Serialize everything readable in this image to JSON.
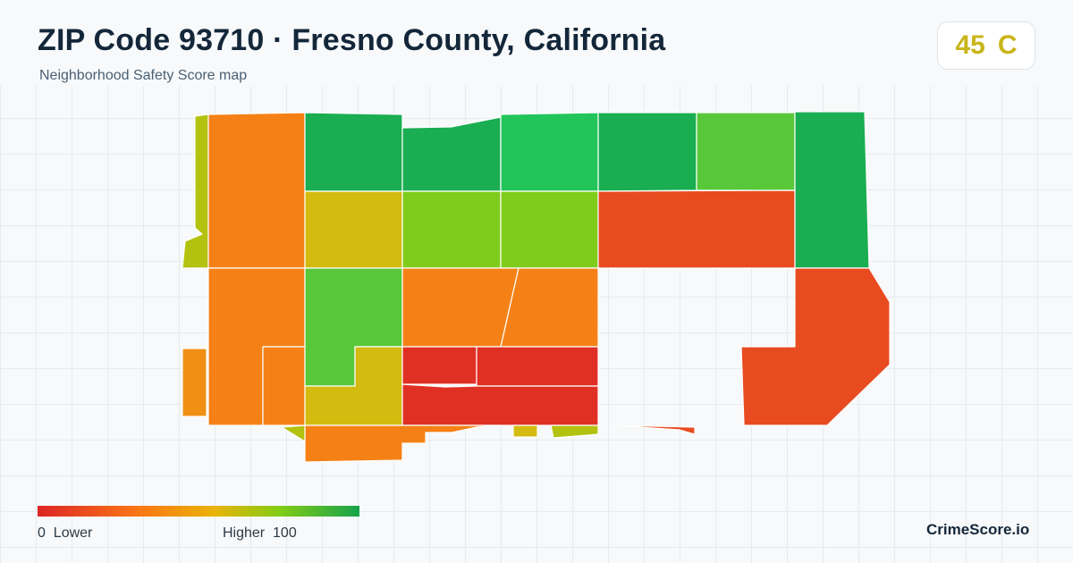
{
  "header": {
    "title": "ZIP Code 93710 · Fresno County, California",
    "subtitle": "Neighborhood Safety Score map"
  },
  "score_badge": {
    "score": "45",
    "grade": "C",
    "color": "#c9b51a"
  },
  "map": {
    "scale": "safety score 0 (lower) to 100 (higher)",
    "colors": {
      "red": "#e03024",
      "red_orange": "#e84b20",
      "orange": "#f58116",
      "orange_gold": "#ef8f14",
      "gold": "#d3bb10",
      "yellow_green": "#b3c20e",
      "light_green": "#80cc1c",
      "green": "#58c83a",
      "bright_green": "#22c55a",
      "dark_green": "#1aad52"
    }
  },
  "legend": {
    "low_label": "0  Lower",
    "high_label": "Higher  100",
    "gradient": [
      "#dc2626",
      "#f97316",
      "#eab308",
      "#84cc16",
      "#16a34a"
    ]
  },
  "brand": "CrimeScore.io"
}
